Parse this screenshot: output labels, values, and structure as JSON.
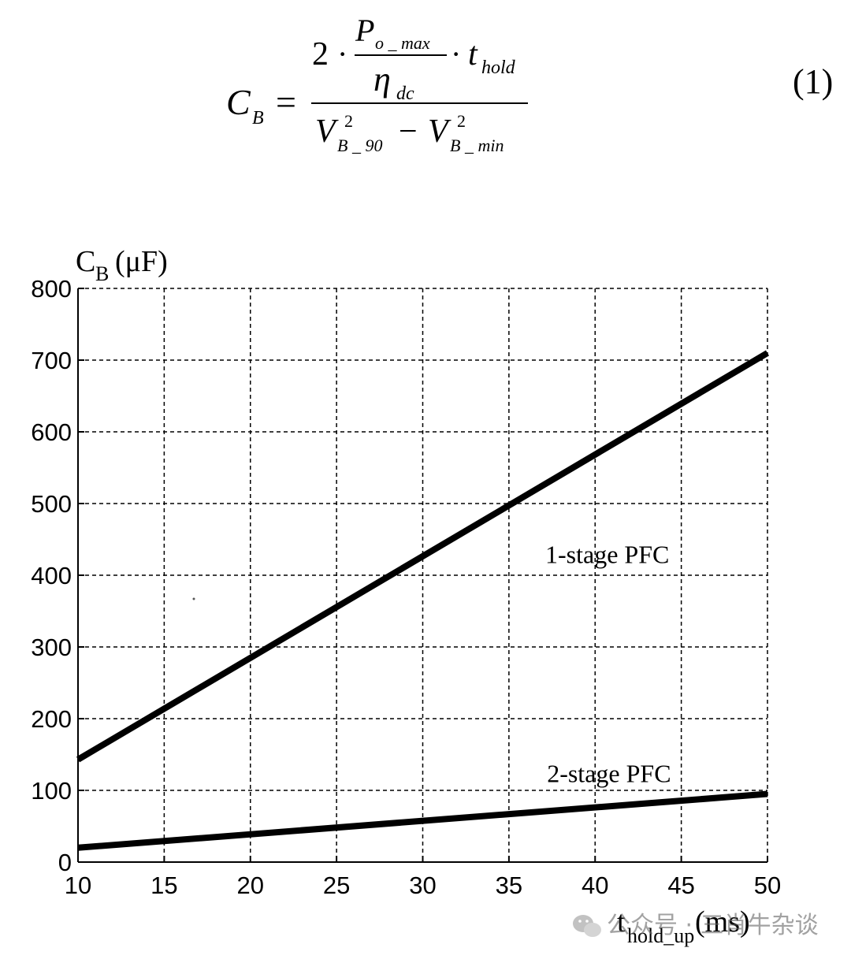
{
  "equation": {
    "lhs_symbol": "C",
    "lhs_sub": "B",
    "equals": "=",
    "num_coeff": "2",
    "dot": "·",
    "power_P": "P",
    "power_sub": "o _ max",
    "eta": "η",
    "eta_sub": "dc",
    "t": "t",
    "t_sub": "hold",
    "V": "V",
    "V1_sup": "2",
    "V1_sub": "B _ 90",
    "minus": "−",
    "V2_sup": "2",
    "V2_sub": "B _ min",
    "number": "(1)"
  },
  "chart_data": {
    "type": "line",
    "ylabel_main": "C",
    "ylabel_sub": "B",
    "ylabel_unit": "(μF)",
    "xlabel_main": "t",
    "xlabel_sub": "hold_up",
    "xlabel_unit": "(ms)",
    "xlim": [
      10,
      50
    ],
    "ylim": [
      0,
      800
    ],
    "xticks": [
      10,
      15,
      20,
      25,
      30,
      35,
      40,
      45,
      50
    ],
    "yticks": [
      0,
      100,
      200,
      300,
      400,
      500,
      600,
      700,
      800
    ],
    "grid": true,
    "series": [
      {
        "name": "1-stage PFC",
        "x": [
          10,
          50
        ],
        "y": [
          143,
          710
        ],
        "color": "#000000"
      },
      {
        "name": "2-stage PFC",
        "x": [
          10,
          50
        ],
        "y": [
          20,
          95
        ],
        "color": "#000000"
      }
    ],
    "annotations": [
      {
        "text": "1-stage PFC",
        "x": 37.2,
        "y": 430
      },
      {
        "text": "2-stage PFC",
        "x": 37.3,
        "y": 125
      }
    ]
  },
  "watermark": {
    "text": "公众号 · 三肖牛杂谈"
  }
}
